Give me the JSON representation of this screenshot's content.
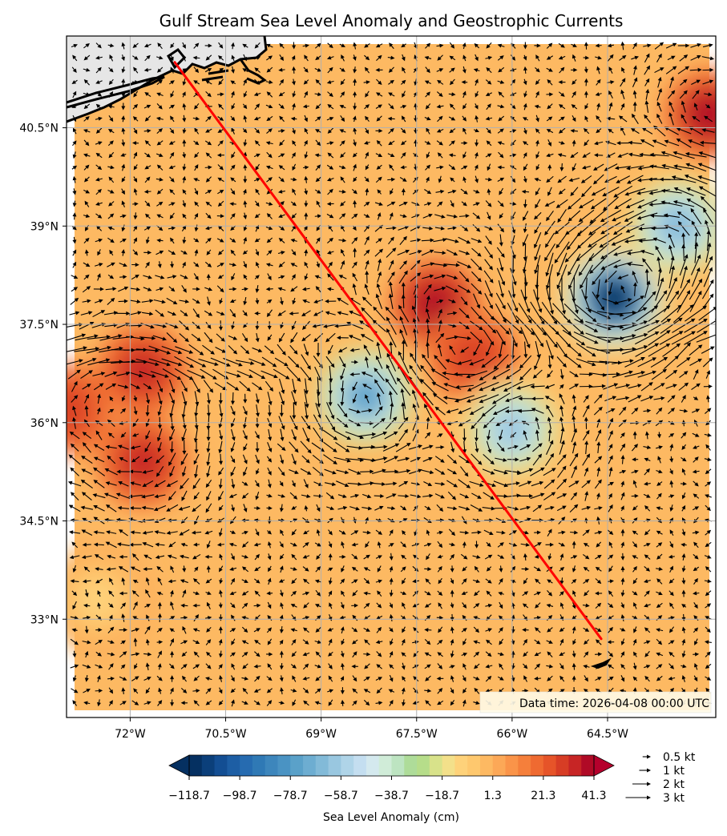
{
  "chart_data": {
    "type": "heatmap",
    "title": "Gulf Stream Sea Level Anomaly and Geostrophic Currents",
    "x_range": [
      -73.0,
      -62.8
    ],
    "y_range": [
      31.5,
      41.9
    ],
    "x_ticks": [
      {
        "value": -72.0,
        "label": "72°W"
      },
      {
        "value": -70.5,
        "label": "70.5°W"
      },
      {
        "value": -69.0,
        "label": "69°W"
      },
      {
        "value": -67.5,
        "label": "67.5°W"
      },
      {
        "value": -66.0,
        "label": "66°W"
      },
      {
        "value": -64.5,
        "label": "64.5°W"
      }
    ],
    "y_ticks": [
      {
        "value": 40.5,
        "label": "40.5°N"
      },
      {
        "value": 39.0,
        "label": "39°N"
      },
      {
        "value": 37.5,
        "label": "37.5°N"
      },
      {
        "value": 36.0,
        "label": "36°N"
      },
      {
        "value": 34.5,
        "label": "34.5°N"
      },
      {
        "value": 33.0,
        "label": "33°N"
      }
    ],
    "grid": true,
    "data_time_label": "Data time: 2026-04-08 00:00 UTC",
    "colorbar": {
      "label": "Sea Level Anomaly (cm)",
      "min": -118.7,
      "max": 41.3,
      "levels": 32,
      "extend": "both",
      "tick_labels": [
        "−118.7",
        "−98.7",
        "−78.7",
        "−58.7",
        "−38.7",
        "−18.7",
        "1.3",
        "21.3",
        "41.3"
      ],
      "tick_values": [
        -118.7,
        -98.7,
        -78.7,
        -58.7,
        -38.7,
        -18.7,
        1.3,
        21.3,
        41.3
      ],
      "colors": [
        "#053061",
        "#0b3f7a",
        "#134e93",
        "#1d5ea4",
        "#266bb0",
        "#2f79b5",
        "#3d86bc",
        "#4a93c3",
        "#5aa1c9",
        "#6dadd1",
        "#82bad8",
        "#99c7e0",
        "#afd4e8",
        "#c4def0",
        "#d4e9ee",
        "#d0ecd8",
        "#bde4c1",
        "#aedc99",
        "#b6dd8a",
        "#d8e28a",
        "#f3e08a",
        "#fed27a",
        "#fec86e",
        "#fdb962",
        "#fca857",
        "#fa9449",
        "#f57f3b",
        "#ef6a31",
        "#e65429",
        "#d73d25",
        "#c72525",
        "#b00a26"
      ],
      "under_color": "#053061",
      "over_color": "#b5002c"
    },
    "anomaly_features": [
      {
        "kind": "high",
        "center": [
          -67.2,
          37.8
        ],
        "value_cm": 41
      },
      {
        "kind": "high",
        "center": [
          -71.8,
          36.8
        ],
        "value_cm": 35
      },
      {
        "kind": "high",
        "center": [
          -71.8,
          35.4
        ],
        "value_cm": 33
      },
      {
        "kind": "high",
        "center": [
          -66.6,
          37.0
        ],
        "value_cm": 30
      },
      {
        "kind": "high",
        "center": [
          -62.9,
          40.7
        ],
        "value_cm": 38
      },
      {
        "kind": "high",
        "center": [
          -73.0,
          36.2
        ],
        "value_cm": 30
      },
      {
        "kind": "low",
        "center": [
          -64.4,
          37.9
        ],
        "value_cm": -118
      },
      {
        "kind": "low",
        "center": [
          -63.4,
          39.0
        ],
        "value_cm": -65
      },
      {
        "kind": "low",
        "center": [
          -68.3,
          36.4
        ],
        "value_cm": -75
      },
      {
        "kind": "low",
        "center": [
          -66.0,
          35.9
        ],
        "value_cm": -60
      },
      {
        "kind": "low",
        "center": [
          -72.5,
          33.3
        ],
        "value_cm": -12
      }
    ],
    "transect_line": {
      "color": "#ff0000",
      "start": [
        -71.3,
        41.5
      ],
      "end": [
        -64.6,
        32.7
      ]
    },
    "quiver_key": [
      {
        "speed": 0.5,
        "label": "0.5 kt"
      },
      {
        "speed": 1,
        "label": "1 kt"
      },
      {
        "speed": 2,
        "label": "2 kt"
      },
      {
        "speed": 3,
        "label": "3 kt"
      }
    ],
    "colors": {
      "land": "#e6e6e6",
      "coast": "#000000",
      "grid": "#b0b0b0",
      "frame": "#000000"
    }
  }
}
